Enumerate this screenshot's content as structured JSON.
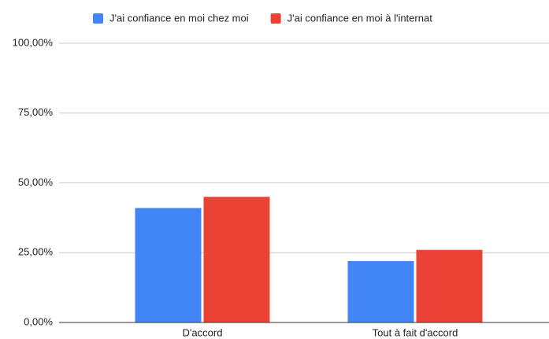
{
  "chart_data": {
    "type": "bar",
    "categories": [
      "D'accord",
      "Tout à fait d'accord"
    ],
    "series": [
      {
        "name": "J'ai confiance en moi chez moi",
        "color": "#4285f4",
        "values": [
          41,
          22
        ]
      },
      {
        "name": "J'ai confiance en moi à l'internat",
        "color": "#ea4335",
        "values": [
          45,
          26
        ]
      }
    ],
    "ylim": [
      0,
      100
    ],
    "yticks": [
      {
        "value": 0,
        "label": "0,00%"
      },
      {
        "value": 25,
        "label": "25,00%"
      },
      {
        "value": 50,
        "label": "50,00%"
      },
      {
        "value": 75,
        "label": "75,00%"
      },
      {
        "value": 100,
        "label": "100,00%"
      }
    ],
    "grid": true,
    "legend": "top"
  }
}
